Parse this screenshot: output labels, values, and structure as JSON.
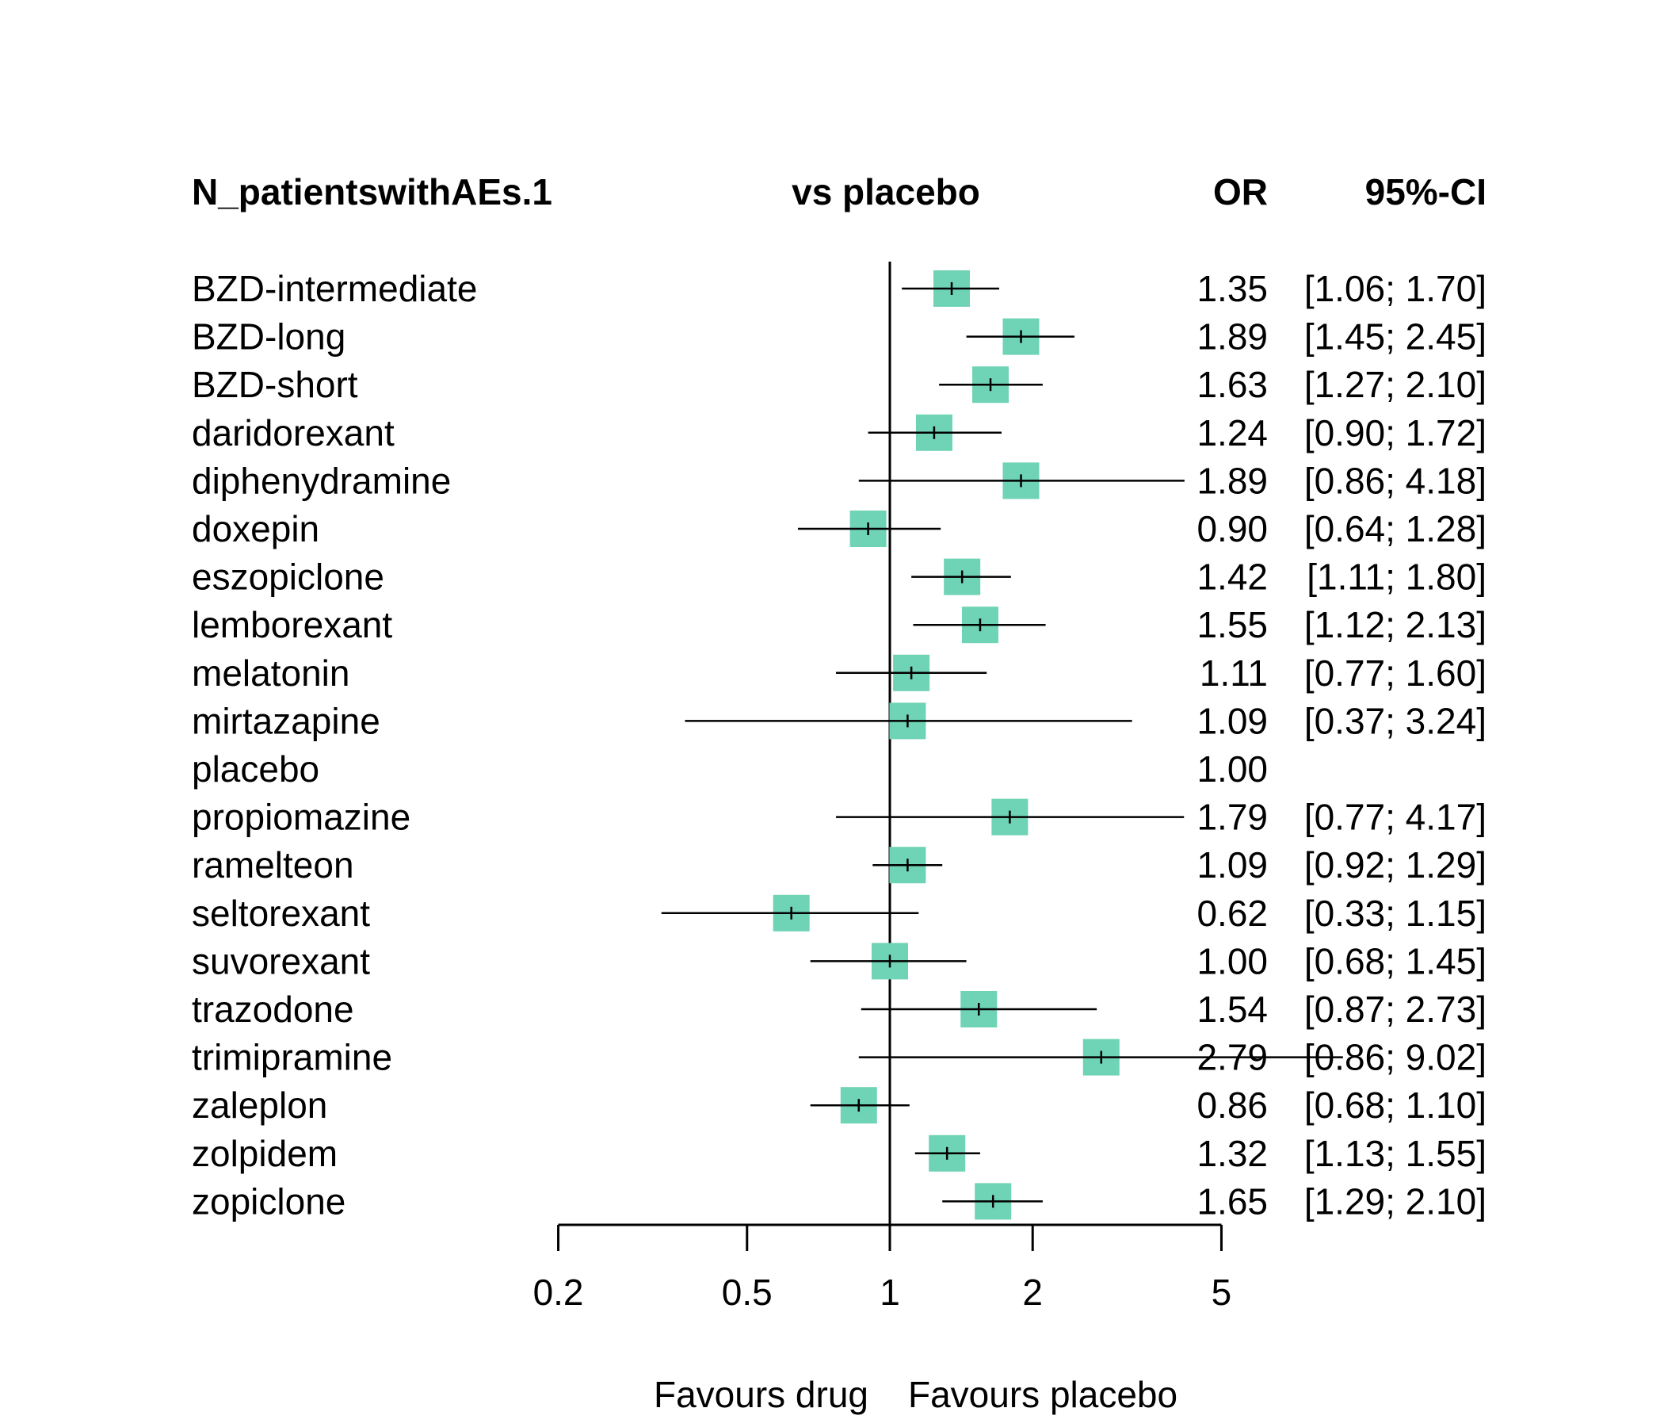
{
  "chart_data": {
    "type": "forest",
    "headers": {
      "outcome": "N_patientswithAEs.1",
      "comparison": "vs placebo",
      "estimate": "OR",
      "ci": "95%-CI"
    },
    "x_scale": "log",
    "x_ticks": [
      0.2,
      0.5,
      1,
      2,
      5
    ],
    "x_tick_labels": [
      "0.2",
      "0.5",
      "1",
      "2",
      "5"
    ],
    "reference_line": 1,
    "footer_left": "Favours drug",
    "footer_right": "Favours placebo",
    "colors": {
      "marker": "#6fd3b5",
      "line": "#000000"
    },
    "rows": [
      {
        "label": "BZD-intermediate",
        "or": 1.35,
        "lower": 1.06,
        "upper": 1.7,
        "or_text": "1.35",
        "ci_text": "[1.06; 1.70]"
      },
      {
        "label": "BZD-long",
        "or": 1.89,
        "lower": 1.45,
        "upper": 2.45,
        "or_text": "1.89",
        "ci_text": "[1.45; 2.45]"
      },
      {
        "label": "BZD-short",
        "or": 1.63,
        "lower": 1.27,
        "upper": 2.1,
        "or_text": "1.63",
        "ci_text": "[1.27; 2.10]"
      },
      {
        "label": "daridorexant",
        "or": 1.24,
        "lower": 0.9,
        "upper": 1.72,
        "or_text": "1.24",
        "ci_text": "[0.90; 1.72]"
      },
      {
        "label": "diphenydramine",
        "or": 1.89,
        "lower": 0.86,
        "upper": 4.18,
        "or_text": "1.89",
        "ci_text": "[0.86; 4.18]"
      },
      {
        "label": "doxepin",
        "or": 0.9,
        "lower": 0.64,
        "upper": 1.28,
        "or_text": "0.90",
        "ci_text": "[0.64; 1.28]"
      },
      {
        "label": "eszopiclone",
        "or": 1.42,
        "lower": 1.11,
        "upper": 1.8,
        "or_text": "1.42",
        "ci_text": "[1.11; 1.80]"
      },
      {
        "label": "lemborexant",
        "or": 1.55,
        "lower": 1.12,
        "upper": 2.13,
        "or_text": "1.55",
        "ci_text": "[1.12; 2.13]"
      },
      {
        "label": "melatonin",
        "or": 1.11,
        "lower": 0.77,
        "upper": 1.6,
        "or_text": "1.11",
        "ci_text": "[0.77; 1.60]"
      },
      {
        "label": "mirtazapine",
        "or": 1.09,
        "lower": 0.37,
        "upper": 3.24,
        "or_text": "1.09",
        "ci_text": "[0.37; 3.24]"
      },
      {
        "label": "placebo",
        "or": 1.0,
        "lower": null,
        "upper": null,
        "or_text": "1.00",
        "ci_text": ""
      },
      {
        "label": "propiomazine",
        "or": 1.79,
        "lower": 0.77,
        "upper": 4.17,
        "or_text": "1.79",
        "ci_text": "[0.77; 4.17]"
      },
      {
        "label": "ramelteon",
        "or": 1.09,
        "lower": 0.92,
        "upper": 1.29,
        "or_text": "1.09",
        "ci_text": "[0.92; 1.29]"
      },
      {
        "label": "seltorexant",
        "or": 0.62,
        "lower": 0.33,
        "upper": 1.15,
        "or_text": "0.62",
        "ci_text": "[0.33; 1.15]"
      },
      {
        "label": "suvorexant",
        "or": 1.0,
        "lower": 0.68,
        "upper": 1.45,
        "or_text": "1.00",
        "ci_text": "[0.68; 1.45]"
      },
      {
        "label": "trazodone",
        "or": 1.54,
        "lower": 0.87,
        "upper": 2.73,
        "or_text": "1.54",
        "ci_text": "[0.87; 2.73]"
      },
      {
        "label": "trimipramine",
        "or": 2.79,
        "lower": 0.86,
        "upper": 9.02,
        "or_text": "2.79",
        "ci_text": "[0.86; 9.02]"
      },
      {
        "label": "zaleplon",
        "or": 0.86,
        "lower": 0.68,
        "upper": 1.1,
        "or_text": "0.86",
        "ci_text": "[0.68; 1.10]"
      },
      {
        "label": "zolpidem",
        "or": 1.32,
        "lower": 1.13,
        "upper": 1.55,
        "or_text": "1.32",
        "ci_text": "[1.13; 1.55]"
      },
      {
        "label": "zopiclone",
        "or": 1.65,
        "lower": 1.29,
        "upper": 2.1,
        "or_text": "1.65",
        "ci_text": "[1.29; 2.10]"
      }
    ]
  }
}
